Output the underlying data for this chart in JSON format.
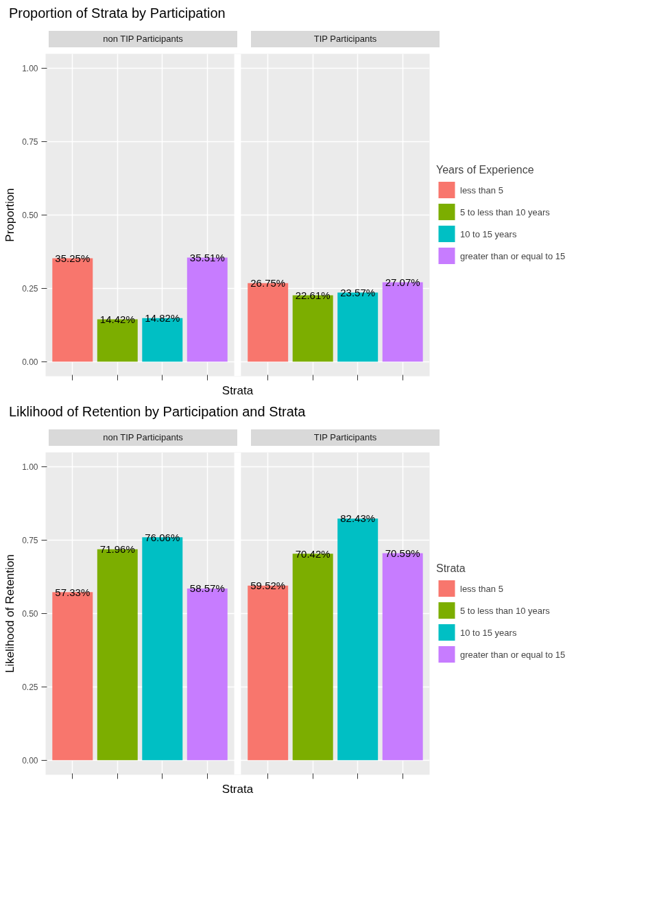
{
  "chart_data": [
    {
      "type": "bar",
      "title": "Proportion of Strata by Participation",
      "ylabel": "Proportion",
      "xlabel": "Strata",
      "legend_title": "Years of Experience",
      "legend": "right",
      "annotations": [
        "non TIP Participants",
        "TIP Participants"
      ],
      "categories": [
        null,
        null,
        null,
        null,
        null,
        null,
        null,
        null
      ],
      "ylim": [
        -0.05,
        1.05
      ],
      "yticks": [
        {
          "value": 0,
          "label": "0.00"
        },
        {
          "value": 0.25,
          "label": "0.25"
        },
        {
          "value": 0.5,
          "label": "0.50"
        },
        {
          "value": 0.75,
          "label": "0.75"
        },
        {
          "value": 1,
          "label": "1.00"
        }
      ],
      "grid": true,
      "tick_labels": "y",
      "series": [
        {
          "name": "less than 5",
          "color": "#f8766d",
          "values": [
            0.3525,
            null,
            null,
            null,
            0.2675,
            null,
            null,
            null
          ],
          "value_labels": [
            "35.25%",
            null,
            null,
            null,
            "26.75%",
            null,
            null,
            null
          ]
        },
        {
          "name": "5 to less than 10 years",
          "color": "#7cae00",
          "values": [
            null,
            0.1442,
            null,
            null,
            null,
            0.2261,
            null,
            null
          ],
          "value_labels": [
            null,
            "14.42%",
            null,
            null,
            null,
            "22.61%",
            null,
            null
          ]
        },
        {
          "name": "10 to 15 years",
          "color": "#00bfc4",
          "values": [
            null,
            null,
            0.1482,
            null,
            null,
            null,
            0.2357,
            null
          ],
          "value_labels": [
            null,
            null,
            "14.82%",
            null,
            null,
            null,
            "23.57%",
            null
          ]
        },
        {
          "name": "greater than or equal to 15",
          "color": "#c77cff",
          "values": [
            null,
            null,
            null,
            0.3551,
            null,
            null,
            null,
            0.2707
          ],
          "value_labels": [
            null,
            null,
            null,
            "35.51%",
            null,
            null,
            null,
            "27.07%"
          ]
        }
      ]
    },
    {
      "type": "bar",
      "title": "Liklihood of Retention by Participation and Strata",
      "ylabel": "Likelihood of Retention",
      "xlabel": "Strata",
      "legend_title": "Strata",
      "legend": "right",
      "annotations": [
        "non TIP Participants",
        "TIP Participants"
      ],
      "categories": [
        null,
        null,
        null,
        null,
        null,
        null,
        null,
        null
      ],
      "ylim": [
        -0.05,
        1.05
      ],
      "yticks": [
        {
          "value": 0,
          "label": "0.00"
        },
        {
          "value": 0.25,
          "label": "0.25"
        },
        {
          "value": 0.5,
          "label": "0.50"
        },
        {
          "value": 0.75,
          "label": "0.75"
        },
        {
          "value": 1,
          "label": "1.00"
        }
      ],
      "grid": true,
      "tick_labels": "y",
      "series": [
        {
          "name": "less than 5",
          "color": "#f8766d",
          "values": [
            0.5733,
            null,
            null,
            null,
            0.5952,
            null,
            null,
            null
          ],
          "value_labels": [
            "57.33%",
            null,
            null,
            null,
            "59.52%",
            null,
            null,
            null
          ]
        },
        {
          "name": "5 to less than 10 years",
          "color": "#7cae00",
          "values": [
            null,
            0.7196,
            null,
            null,
            null,
            0.7042,
            null,
            null
          ],
          "value_labels": [
            null,
            "71.96%",
            null,
            null,
            null,
            "70.42%",
            null,
            null
          ]
        },
        {
          "name": "10 to 15 years",
          "color": "#00bfc4",
          "values": [
            null,
            null,
            0.7606,
            null,
            null,
            null,
            0.8243,
            null
          ],
          "value_labels": [
            null,
            null,
            "76.06%",
            null,
            null,
            null,
            "82.43%",
            null
          ]
        },
        {
          "name": "greater than or equal to 15",
          "color": "#c77cff",
          "values": [
            null,
            null,
            null,
            0.5857,
            null,
            null,
            null,
            0.7059
          ],
          "value_labels": [
            null,
            null,
            null,
            "58.57%",
            null,
            null,
            null,
            "70.59%"
          ]
        }
      ]
    }
  ]
}
